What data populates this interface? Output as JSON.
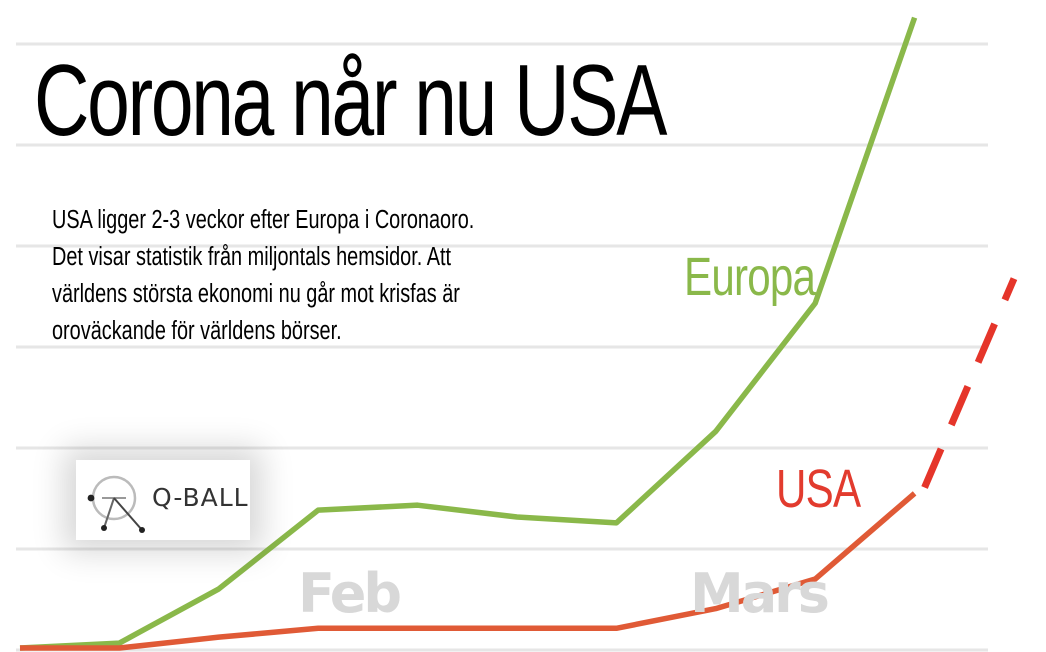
{
  "title": "Corona når nu USA",
  "subtitle": "USA ligger 2-3 veckor efter Europa i Coronaoro.\nDet visar statistik från miljontals hemsidor. Att\nvärldens största ekonomi nu går mot krisfas är\noroväckande för världens börser.",
  "logo": {
    "text": "Q-BALL"
  },
  "colors": {
    "europa": "#8ab84a",
    "usa_label": "#e23b2e",
    "usa_line": "#e05a36",
    "usa_projection": "#e5352a",
    "gridline": "#e6e6e6",
    "month_label": "#d8d8d8"
  },
  "chart_data": {
    "type": "line",
    "title": "Corona når nu USA",
    "x_labels": [
      "Feb",
      "Mars"
    ],
    "ylim": [
      0,
      64
    ],
    "grid": true,
    "y_ticks_shown": false,
    "x": [
      0,
      1,
      2,
      3,
      4,
      5,
      6,
      7,
      8
    ],
    "series": [
      {
        "name": "Europa",
        "values": [
          0,
          0.5,
          6,
          14,
          14.5,
          13.3,
          12.7,
          22,
          35,
          64
        ],
        "x": [
          0,
          1,
          2,
          3,
          4,
          5,
          6,
          7,
          8,
          9
        ]
      },
      {
        "name": "USA",
        "values": [
          0,
          0,
          1.1,
          2,
          2,
          2,
          2,
          4,
          7,
          15.7
        ],
        "x": [
          0,
          1,
          2,
          3,
          4,
          5,
          6,
          7,
          8,
          9
        ]
      },
      {
        "name": "USA",
        "style": "dashed",
        "values": [
          16.3,
          37.5
        ],
        "x": [
          9.1,
          10
        ]
      }
    ]
  }
}
